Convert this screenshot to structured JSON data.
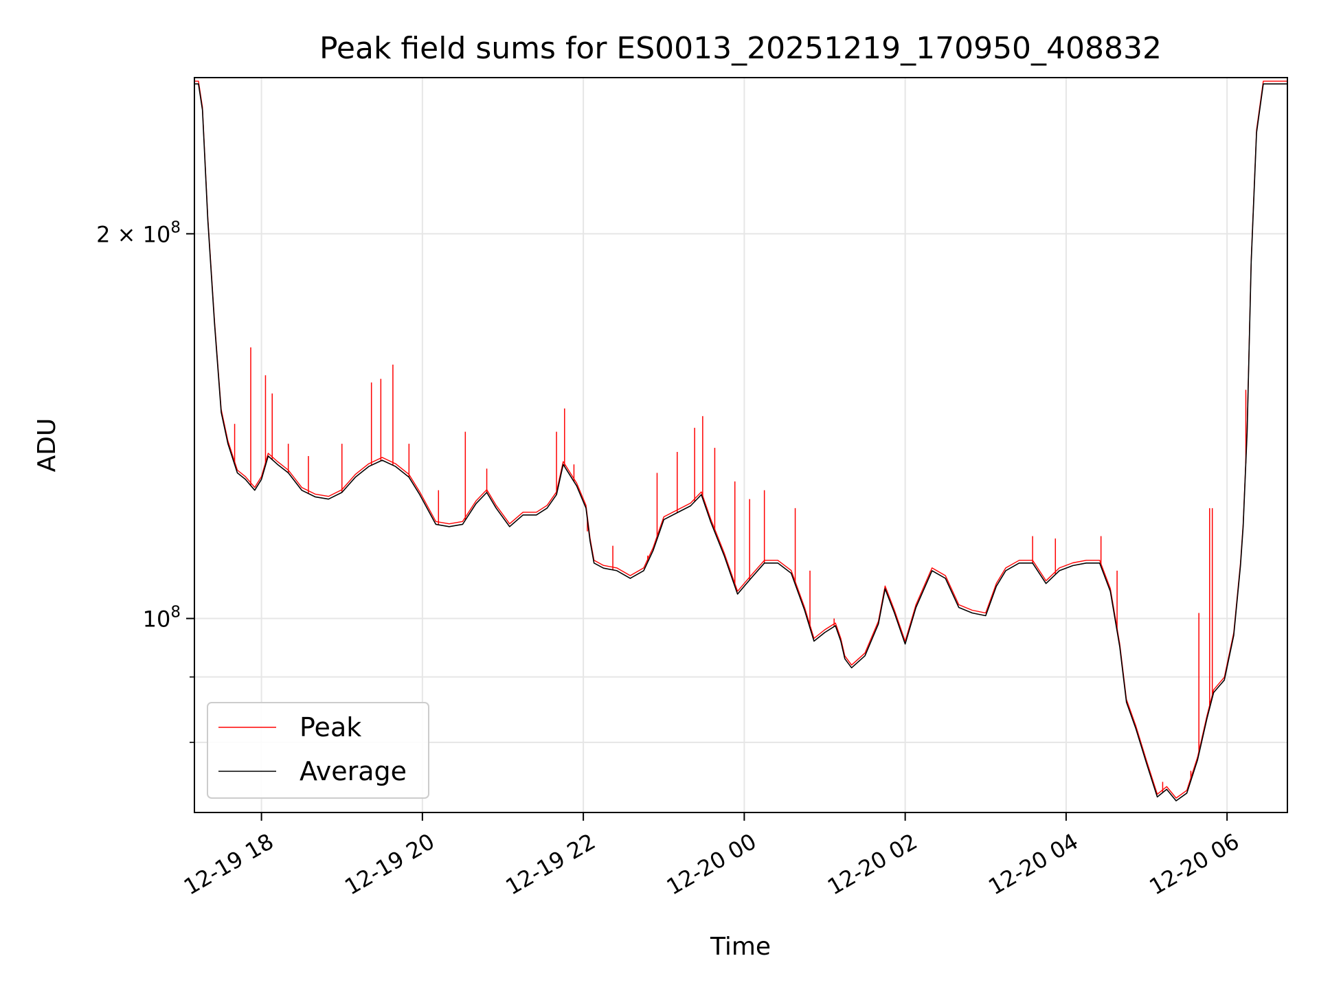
{
  "chart_data": {
    "type": "line",
    "title": "Peak field sums for ES0013_20251219_170950_408832",
    "xlabel": "Time",
    "ylabel": "ADU",
    "y_scale": "log",
    "grid": true,
    "legend_position": "lower-left",
    "xlim": [
      "2025-12-19T17:10",
      "2025-12-20T06:45"
    ],
    "ylim": [
      70500000,
      265000000
    ],
    "x_ticks": [
      {
        "value": "2025-12-19T18:00",
        "label": "12-19 18"
      },
      {
        "value": "2025-12-19T20:00",
        "label": "12-19 20"
      },
      {
        "value": "2025-12-19T22:00",
        "label": "12-19 22"
      },
      {
        "value": "2025-12-20T00:00",
        "label": "12-20 00"
      },
      {
        "value": "2025-12-20T02:00",
        "label": "12-20 02"
      },
      {
        "value": "2025-12-20T04:00",
        "label": "12-20 04"
      },
      {
        "value": "2025-12-20T06:00",
        "label": "12-20 06"
      }
    ],
    "y_ticks": [
      {
        "value": 200000000,
        "label": "2 × 10",
        "exponent": "8"
      },
      {
        "value": 100000000,
        "label": "10",
        "exponent": "8"
      }
    ],
    "y_minor_ticks": [
      80000000,
      90000000
    ],
    "average_series": {
      "name": "Average",
      "color": "#000000",
      "points": [
        [
          "2025-12-19T17:10",
          262000000
        ],
        [
          "2025-12-19T17:13",
          262000000
        ],
        [
          "2025-12-19T17:16",
          250000000
        ],
        [
          "2025-12-19T17:20",
          205000000
        ],
        [
          "2025-12-19T17:25",
          170000000
        ],
        [
          "2025-12-19T17:30",
          145000000
        ],
        [
          "2025-12-19T17:35",
          137000000
        ],
        [
          "2025-12-19T17:42",
          130000000
        ],
        [
          "2025-12-19T17:48",
          128500000
        ],
        [
          "2025-12-19T17:55",
          126000000
        ],
        [
          "2025-12-19T18:00",
          128500000
        ],
        [
          "2025-12-19T18:05",
          134000000
        ],
        [
          "2025-12-19T18:12",
          132000000
        ],
        [
          "2025-12-19T18:20",
          130000000
        ],
        [
          "2025-12-19T18:30",
          126000000
        ],
        [
          "2025-12-19T18:40",
          124500000
        ],
        [
          "2025-12-19T18:50",
          124000000
        ],
        [
          "2025-12-19T19:00",
          125500000
        ],
        [
          "2025-12-19T19:10",
          129000000
        ],
        [
          "2025-12-19T19:20",
          131500000
        ],
        [
          "2025-12-19T19:30",
          133000000
        ],
        [
          "2025-12-19T19:40",
          131500000
        ],
        [
          "2025-12-19T19:50",
          129000000
        ],
        [
          "2025-12-19T19:58",
          125000000
        ],
        [
          "2025-12-19T20:10",
          118500000
        ],
        [
          "2025-12-19T20:20",
          118000000
        ],
        [
          "2025-12-19T20:30",
          118500000
        ],
        [
          "2025-12-19T20:40",
          123000000
        ],
        [
          "2025-12-19T20:48",
          125500000
        ],
        [
          "2025-12-19T20:55",
          122000000
        ],
        [
          "2025-12-19T21:05",
          118000000
        ],
        [
          "2025-12-19T21:15",
          120500000
        ],
        [
          "2025-12-19T21:25",
          120500000
        ],
        [
          "2025-12-19T21:33",
          122000000
        ],
        [
          "2025-12-19T21:40",
          125000000
        ],
        [
          "2025-12-19T21:45",
          132000000
        ],
        [
          "2025-12-19T21:55",
          127000000
        ],
        [
          "2025-12-19T22:02",
          122000000
        ],
        [
          "2025-12-19T22:05",
          115000000
        ],
        [
          "2025-12-19T22:08",
          110500000
        ],
        [
          "2025-12-19T22:15",
          109500000
        ],
        [
          "2025-12-19T22:25",
          109000000
        ],
        [
          "2025-12-19T22:35",
          107500000
        ],
        [
          "2025-12-19T22:45",
          109000000
        ],
        [
          "2025-12-19T22:52",
          113000000
        ],
        [
          "2025-12-19T23:00",
          119500000
        ],
        [
          "2025-12-19T23:10",
          121000000
        ],
        [
          "2025-12-19T23:20",
          122500000
        ],
        [
          "2025-12-19T23:28",
          125000000
        ],
        [
          "2025-12-19T23:35",
          119000000
        ],
        [
          "2025-12-19T23:45",
          112000000
        ],
        [
          "2025-12-19T23:55",
          104500000
        ],
        [
          "2025-12-20T00:05",
          107500000
        ],
        [
          "2025-12-20T00:15",
          110500000
        ],
        [
          "2025-12-20T00:25",
          110500000
        ],
        [
          "2025-12-20T00:35",
          108500000
        ],
        [
          "2025-12-20T00:45",
          101500000
        ],
        [
          "2025-12-20T00:52",
          96000000
        ],
        [
          "2025-12-20T01:00",
          97500000
        ],
        [
          "2025-12-20T01:08",
          98700000
        ],
        [
          "2025-12-20T01:12",
          96000000
        ],
        [
          "2025-12-20T01:15",
          93000000
        ],
        [
          "2025-12-20T01:20",
          91500000
        ],
        [
          "2025-12-20T01:30",
          93500000
        ],
        [
          "2025-12-20T01:40",
          99000000
        ],
        [
          "2025-12-20T01:45",
          105500000
        ],
        [
          "2025-12-20T01:52",
          101000000
        ],
        [
          "2025-12-20T02:00",
          95500000
        ],
        [
          "2025-12-20T02:08",
          102000000
        ],
        [
          "2025-12-20T02:20",
          109000000
        ],
        [
          "2025-12-20T02:30",
          107500000
        ],
        [
          "2025-12-20T02:40",
          102000000
        ],
        [
          "2025-12-20T02:50",
          101000000
        ],
        [
          "2025-12-20T03:00",
          100500000
        ],
        [
          "2025-12-20T03:08",
          106000000
        ],
        [
          "2025-12-20T03:15",
          109000000
        ],
        [
          "2025-12-20T03:25",
          110500000
        ],
        [
          "2025-12-20T03:35",
          110500000
        ],
        [
          "2025-12-20T03:45",
          106500000
        ],
        [
          "2025-12-20T03:55",
          109000000
        ],
        [
          "2025-12-20T04:05",
          110000000
        ],
        [
          "2025-12-20T04:15",
          110500000
        ],
        [
          "2025-12-20T04:25",
          110500000
        ],
        [
          "2025-12-20T04:33",
          105000000
        ],
        [
          "2025-12-20T04:40",
          95000000
        ],
        [
          "2025-12-20T04:45",
          86000000
        ],
        [
          "2025-12-20T04:52",
          82000000
        ],
        [
          "2025-12-20T05:00",
          77000000
        ],
        [
          "2025-12-20T05:08",
          72500000
        ],
        [
          "2025-12-20T05:15",
          73500000
        ],
        [
          "2025-12-20T05:22",
          72000000
        ],
        [
          "2025-12-20T05:30",
          73000000
        ],
        [
          "2025-12-20T05:38",
          77500000
        ],
        [
          "2025-12-20T05:45",
          83500000
        ],
        [
          "2025-12-20T05:50",
          87500000
        ],
        [
          "2025-12-20T05:58",
          89500000
        ],
        [
          "2025-12-20T06:05",
          97000000
        ],
        [
          "2025-12-20T06:10",
          110000000
        ],
        [
          "2025-12-20T06:12",
          118000000
        ],
        [
          "2025-12-20T06:15",
          140000000
        ],
        [
          "2025-12-20T06:18",
          190000000
        ],
        [
          "2025-12-20T06:22",
          240000000
        ],
        [
          "2025-12-20T06:27",
          262000000
        ],
        [
          "2025-12-20T06:45",
          262000000
        ]
      ]
    },
    "peak_series": {
      "name": "Peak",
      "color": "#ff0000",
      "offset_factor": 1.005,
      "spikes": [
        [
          "2025-12-19T17:40",
          142000000
        ],
        [
          "2025-12-19T17:52",
          163000000
        ],
        [
          "2025-12-19T18:03",
          155000000
        ],
        [
          "2025-12-19T18:08",
          150000000
        ],
        [
          "2025-12-19T18:20",
          137000000
        ],
        [
          "2025-12-19T18:35",
          134000000
        ],
        [
          "2025-12-19T19:00",
          137000000
        ],
        [
          "2025-12-19T19:22",
          153000000
        ],
        [
          "2025-12-19T19:29",
          154000000
        ],
        [
          "2025-12-19T19:38",
          158000000
        ],
        [
          "2025-12-19T19:50",
          137000000
        ],
        [
          "2025-12-19T20:12",
          126000000
        ],
        [
          "2025-12-19T20:32",
          140000000
        ],
        [
          "2025-12-19T20:48",
          131000000
        ],
        [
          "2025-12-19T21:40",
          140000000
        ],
        [
          "2025-12-19T21:46",
          146000000
        ],
        [
          "2025-12-19T21:53",
          132000000
        ],
        [
          "2025-12-19T22:03",
          117000000
        ],
        [
          "2025-12-19T22:22",
          114000000
        ],
        [
          "2025-12-19T22:48",
          112000000
        ],
        [
          "2025-12-19T22:55",
          130000000
        ],
        [
          "2025-12-19T23:10",
          135000000
        ],
        [
          "2025-12-19T23:23",
          141000000
        ],
        [
          "2025-12-19T23:29",
          144000000
        ],
        [
          "2025-12-19T23:38",
          136000000
        ],
        [
          "2025-12-19T23:53",
          128000000
        ],
        [
          "2025-12-20T00:04",
          124000000
        ],
        [
          "2025-12-20T00:15",
          126000000
        ],
        [
          "2025-12-20T00:38",
          122000000
        ],
        [
          "2025-12-20T00:49",
          109000000
        ],
        [
          "2025-12-20T01:07",
          100000000
        ],
        [
          "2025-12-20T03:35",
          116000000
        ],
        [
          "2025-12-20T03:52",
          115500000
        ],
        [
          "2025-12-20T04:26",
          116000000
        ],
        [
          "2025-12-20T04:38",
          109000000
        ],
        [
          "2025-12-20T05:12",
          74500000
        ],
        [
          "2025-12-20T05:33",
          76000000
        ],
        [
          "2025-12-20T05:39",
          101000000
        ],
        [
          "2025-12-20T05:47",
          122000000
        ],
        [
          "2025-12-20T05:49",
          122000000
        ],
        [
          "2025-12-20T06:14",
          151000000
        ]
      ]
    }
  },
  "legend": {
    "items": [
      {
        "label": "Peak",
        "color": "#ff0000"
      },
      {
        "label": "Average",
        "color": "#000000"
      }
    ]
  }
}
